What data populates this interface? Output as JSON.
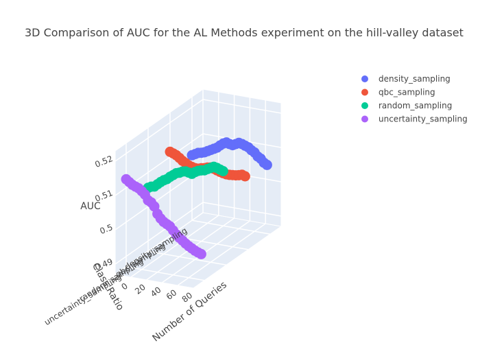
{
  "chart_data": {
    "type": "scatter",
    "title": "3D Comparison of AUC for the AL Methods experiment on the hill-valley dataset",
    "axes": {
      "x": {
        "title": "Number of Queries",
        "ticks": [
          "0",
          "20",
          "40",
          "60",
          "80"
        ],
        "range": [
          0,
          100
        ]
      },
      "y": {
        "title": "Class Ratio",
        "ticks": [
          "density_sampling",
          "qbc_sampling",
          "random_sampling",
          "uncertainty_sampling"
        ]
      },
      "z": {
        "title": "AUC",
        "ticks": [
          "0.49",
          "0.5",
          "0.51",
          "0.52"
        ],
        "range": [
          0.487,
          0.523
        ]
      }
    },
    "legend": {
      "placement": "top-right"
    },
    "series": [
      {
        "name": "density_sampling",
        "color": "#636efa",
        "x": [
          0,
          4,
          8,
          12,
          16,
          20,
          24,
          28,
          32,
          36,
          40,
          44,
          48,
          52,
          56,
          60,
          64,
          68,
          72,
          76,
          80,
          84,
          88,
          92,
          96
        ],
        "y": [
          0,
          0,
          0,
          0,
          0,
          0,
          0,
          0,
          0,
          0,
          0,
          0,
          0,
          0,
          0,
          0,
          0,
          0,
          0,
          0,
          0,
          0,
          0,
          0,
          0
        ],
        "z": [
          0.506,
          0.5065,
          0.507,
          0.5072,
          0.5075,
          0.508,
          0.5085,
          0.509,
          0.5095,
          0.5103,
          0.511,
          0.5115,
          0.5112,
          0.511,
          0.5115,
          0.512,
          0.5118,
          0.5115,
          0.5112,
          0.5105,
          0.51,
          0.509,
          0.5085,
          0.5075,
          0.507
        ]
      },
      {
        "name": "qbc_sampling",
        "color": "#ef553b",
        "x": [
          0,
          4,
          8,
          12,
          16,
          20,
          24,
          28,
          32,
          36,
          40,
          44,
          48,
          52,
          56,
          60,
          64,
          68,
          72,
          76,
          80,
          84,
          88,
          92,
          96
        ],
        "y": [
          1,
          1,
          1,
          1,
          1,
          1,
          1,
          1,
          1,
          1,
          1,
          1,
          1,
          1,
          1,
          1,
          1,
          1,
          1,
          1,
          1,
          1,
          1,
          1,
          1
        ],
        "z": [
          0.5115,
          0.5112,
          0.5108,
          0.5102,
          0.5095,
          0.509,
          0.5085,
          0.5082,
          0.508,
          0.508,
          0.5083,
          0.5085,
          0.5088,
          0.509,
          0.5088,
          0.5085,
          0.5082,
          0.508,
          0.5078,
          0.5078,
          0.5079,
          0.508,
          0.5082,
          0.5085,
          0.5082
        ]
      },
      {
        "name": "random_sampling",
        "color": "#00cc96",
        "x": [
          0,
          4,
          8,
          12,
          16,
          20,
          24,
          28,
          32,
          36,
          40,
          44,
          48,
          52,
          56,
          60,
          64,
          68,
          72,
          76,
          80,
          84,
          88,
          92,
          96
        ],
        "y": [
          2,
          2,
          2,
          2,
          2,
          2,
          2,
          2,
          2,
          2,
          2,
          2,
          2,
          2,
          2,
          2,
          2,
          2,
          2,
          2,
          2,
          2,
          2,
          2,
          2
        ],
        "z": [
          0.5055,
          0.506,
          0.5062,
          0.507,
          0.5078,
          0.5085,
          0.509,
          0.5098,
          0.5105,
          0.5112,
          0.5115,
          0.512,
          0.5122,
          0.512,
          0.5118,
          0.5125,
          0.513,
          0.5133,
          0.5135,
          0.514,
          0.5145,
          0.515,
          0.5148,
          0.5145,
          0.5142
        ]
      },
      {
        "name": "uncertainty_sampling",
        "color": "#ab63fa",
        "x": [
          0,
          4,
          8,
          12,
          16,
          20,
          24,
          28,
          32,
          36,
          40,
          44,
          48,
          52,
          56,
          60,
          64,
          68,
          72,
          76,
          80,
          84,
          88,
          92,
          96
        ],
        "y": [
          3,
          3,
          3,
          3,
          3,
          3,
          3,
          3,
          3,
          3,
          3,
          3,
          3,
          3,
          3,
          3,
          3,
          3,
          3,
          3,
          3,
          3,
          3,
          3,
          3
        ],
        "z": [
          0.5125,
          0.5118,
          0.5112,
          0.5108,
          0.5105,
          0.5098,
          0.509,
          0.5075,
          0.507,
          0.506,
          0.504,
          0.5028,
          0.502,
          0.5015,
          0.501,
          0.5,
          0.499,
          0.4982,
          0.4975,
          0.4968,
          0.4962,
          0.4957,
          0.4952,
          0.4948,
          0.4945
        ]
      }
    ]
  }
}
